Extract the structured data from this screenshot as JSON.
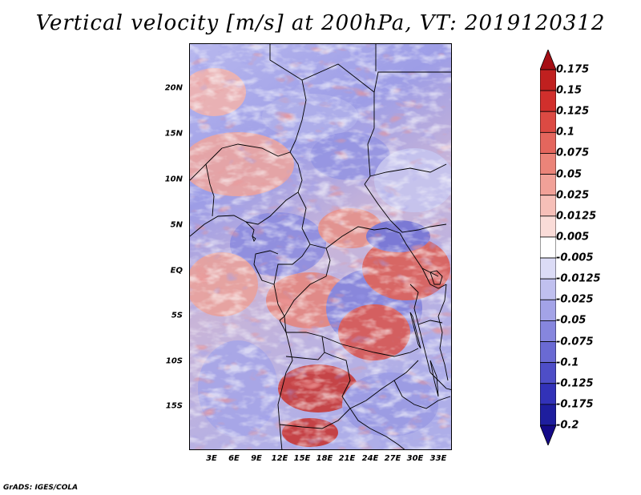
{
  "title": "Vertical velocity [m/s] at 200hPa, VT: 2019120312",
  "credit": "GrADS: IGES/COLA",
  "lat_ticks": [
    "20N",
    "15N",
    "10N",
    "5N",
    "EQ",
    "5S",
    "10S",
    "15S"
  ],
  "lon_ticks": [
    "3E",
    "6E",
    "9E",
    "12E",
    "15E",
    "18E",
    "21E",
    "24E",
    "27E",
    "30E",
    "33E"
  ],
  "colorbar": {
    "labels": [
      "0.175",
      "0.15",
      "0.125",
      "0.1",
      "0.075",
      "0.05",
      "0.025",
      "0.0125",
      "0.005",
      "-0.005",
      "-0.0125",
      "-0.025",
      "-0.05",
      "-0.075",
      "-0.1",
      "-0.125",
      "-0.175",
      "-0.2"
    ],
    "colors": [
      "#a50f15",
      "#c0201f",
      "#d12f2c",
      "#dc4a43",
      "#e4665d",
      "#eb8479",
      "#f1a198",
      "#f6bfb8",
      "#fadcd8",
      "#ffffff",
      "#dcdcf6",
      "#c0c0ef",
      "#a3a3e7",
      "#8686de",
      "#6a6ad3",
      "#4e4ec7",
      "#3232b8",
      "#1e1e9e",
      "#140a88"
    ]
  },
  "map": {
    "variable": "Vertical velocity",
    "units": "m/s",
    "level": "200hPa",
    "valid_time": "2019120312",
    "lat_range": [
      "19S",
      "24N"
    ],
    "lon_range": [
      "0E",
      "35E"
    ]
  }
}
